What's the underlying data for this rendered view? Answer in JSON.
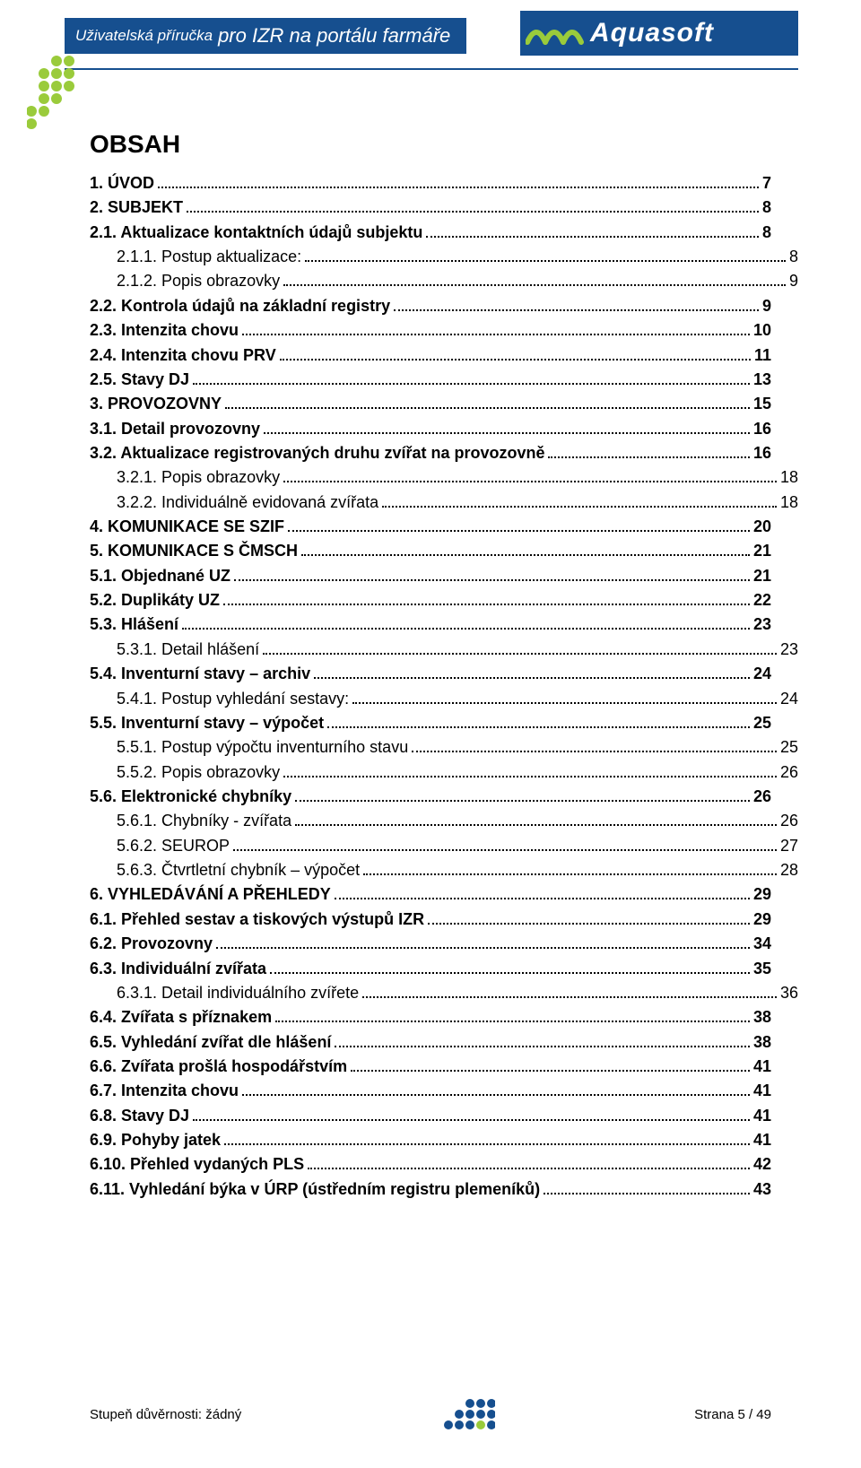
{
  "header": {
    "title_small": "Uživatelská příručka",
    "title_big": "pro IZR na portálu farmáře",
    "logo_text": "Aquasoft",
    "brand_color": "#164f8f",
    "accent_color": "#9acb3b"
  },
  "toc_title": "OBSAH",
  "toc": [
    {
      "level": 0,
      "label": "1. ÚVOD",
      "page": "7"
    },
    {
      "level": 0,
      "label": "2. SUBJEKT",
      "page": "8"
    },
    {
      "level": 1,
      "label": "2.1. Aktualizace kontaktních údajů subjektu",
      "page": "8"
    },
    {
      "level": 2,
      "label": "2.1.1. Postup aktualizace:",
      "page": "8"
    },
    {
      "level": 2,
      "label": "2.1.2. Popis obrazovky",
      "page": "9"
    },
    {
      "level": 1,
      "label": "2.2. Kontrola údajů na základní registry",
      "page": "9"
    },
    {
      "level": 1,
      "label": "2.3. Intenzita chovu",
      "page": "10"
    },
    {
      "level": 1,
      "label": "2.4. Intenzita chovu PRV",
      "page": "11"
    },
    {
      "level": 1,
      "label": "2.5. Stavy DJ",
      "page": "13"
    },
    {
      "level": 0,
      "label": "3. PROVOZOVNY",
      "page": "15"
    },
    {
      "level": 1,
      "label": "3.1. Detail provozovny",
      "page": "16"
    },
    {
      "level": 1,
      "label": "3.2. Aktualizace registrovaných druhu zvířat na provozovně",
      "page": "16"
    },
    {
      "level": 2,
      "label": "3.2.1. Popis obrazovky",
      "page": "18"
    },
    {
      "level": 2,
      "label": "3.2.2. Individuálně evidovaná zvířata",
      "page": "18"
    },
    {
      "level": 0,
      "label": "4. KOMUNIKACE SE SZIF",
      "page": "20"
    },
    {
      "level": 0,
      "label": "5. KOMUNIKACE S ČMSCH",
      "page": "21"
    },
    {
      "level": 1,
      "label": "5.1. Objednané UZ",
      "page": "21"
    },
    {
      "level": 1,
      "label": "5.2. Duplikáty UZ",
      "page": "22"
    },
    {
      "level": 1,
      "label": "5.3. Hlášení",
      "page": "23"
    },
    {
      "level": 2,
      "label": "5.3.1. Detail hlášení",
      "page": "23"
    },
    {
      "level": 1,
      "label": "5.4. Inventurní stavy – archiv",
      "page": "24"
    },
    {
      "level": 2,
      "label": "5.4.1. Postup vyhledání sestavy:",
      "page": "24"
    },
    {
      "level": 1,
      "label": "5.5. Inventurní stavy – výpočet",
      "page": "25"
    },
    {
      "level": 2,
      "label": "5.5.1. Postup výpočtu inventurního stavu",
      "page": "25"
    },
    {
      "level": 2,
      "label": "5.5.2. Popis obrazovky",
      "page": "26"
    },
    {
      "level": 1,
      "label": "5.6. Elektronické chybníky",
      "page": "26"
    },
    {
      "level": 2,
      "label": "5.6.1. Chybníky - zvířata",
      "page": "26"
    },
    {
      "level": 2,
      "label": "5.6.2. SEUROP",
      "page": "27"
    },
    {
      "level": 2,
      "label": "5.6.3. Čtvrtletní chybník – výpočet",
      "page": "28"
    },
    {
      "level": 0,
      "label": "6. VYHLEDÁVÁNÍ A PŘEHLEDY",
      "page": "29"
    },
    {
      "level": 1,
      "label": "6.1. Přehled sestav a tiskových výstupů IZR",
      "page": "29"
    },
    {
      "level": 1,
      "label": "6.2. Provozovny",
      "page": "34"
    },
    {
      "level": 1,
      "label": "6.3. Individuální zvířata",
      "page": "35"
    },
    {
      "level": 2,
      "label": "6.3.1. Detail individuálního zvířete",
      "page": "36"
    },
    {
      "level": 1,
      "label": "6.4. Zvířata s příznakem",
      "page": "38"
    },
    {
      "level": 1,
      "label": "6.5. Vyhledání zvířat dle hlášení",
      "page": "38"
    },
    {
      "level": 1,
      "label": "6.6. Zvířata prošlá hospodářstvím",
      "page": "41"
    },
    {
      "level": 1,
      "label": "6.7. Intenzita chovu",
      "page": "41"
    },
    {
      "level": 1,
      "label": "6.8. Stavy DJ",
      "page": "41"
    },
    {
      "level": 1,
      "label": "6.9. Pohyby jatek",
      "page": "41"
    },
    {
      "level": 1,
      "label": "6.10. Přehled vydaných PLS",
      "page": "42"
    },
    {
      "level": 1,
      "label": "6.11. Vyhledání býka v ÚRP (ústředním registru plemeníků)",
      "page": "43"
    }
  ],
  "footer": {
    "left": "Stupeň důvěrnosti: žádný",
    "right": "Strana 5 / 49"
  }
}
